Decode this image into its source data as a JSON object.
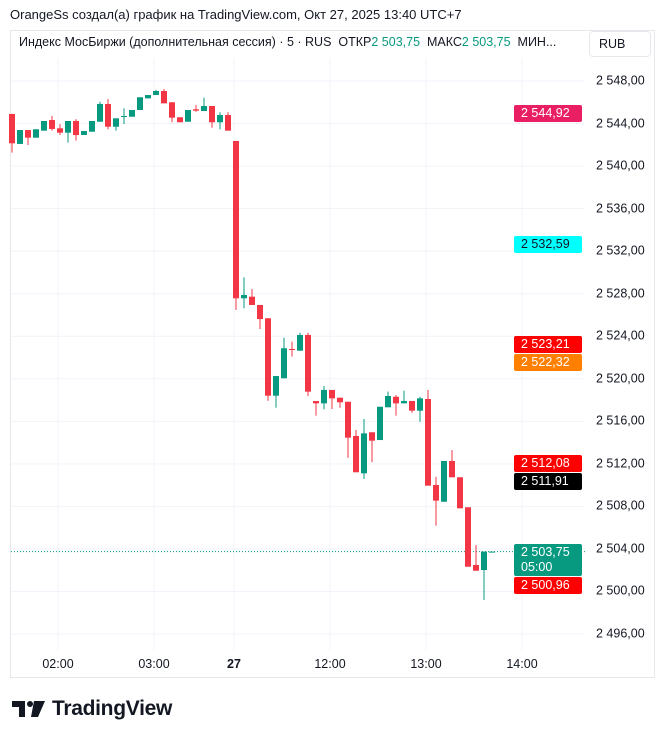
{
  "header": {
    "caption": "OrangeSs создал(а) график на TradingView.com, Окт 27, 2025 13:40 UTC+7"
  },
  "legend": {
    "symbol": "Индекс МосБиржи (дополнительная сессия) · 5 · RUS",
    "open_label": "ОТКР",
    "open_value": "2 503,75",
    "high_label": "МАКС",
    "high_value": "2 503,75",
    "low_label": "МИН..."
  },
  "currency_button": "RUB",
  "brand": "TradingView",
  "colors": {
    "up": "#089981",
    "down": "#f23645",
    "grid": "#f0f3fa"
  },
  "chart_data": {
    "type": "candlestick",
    "title": "Индекс МосБиржи (дополнительная сессия) · 5",
    "ylim": [
      2494,
      2550
    ],
    "y_ticks": [
      2548,
      2544,
      2540,
      2536,
      2532,
      2528,
      2524,
      2520,
      2516,
      2512,
      2508,
      2504,
      2500,
      2496
    ],
    "y_tick_labels": [
      "2 548,00",
      "2 544,00",
      "2 540,00",
      "2 536,00",
      "2 532,00",
      "2 528,00",
      "2 524,00",
      "2 520,00",
      "2 516,00",
      "2 512,00",
      "2 508,00",
      "2 504,00",
      "2 500,00",
      "2 496,00"
    ],
    "x_labels": [
      "02:00",
      "03:00",
      "27",
      "12:00",
      "13:00",
      "14:00"
    ],
    "x_label_candle_index": [
      6,
      18,
      28,
      40,
      52,
      64
    ],
    "candles": [
      [
        2544.9,
        2544.92,
        2541.26,
        2542.14
      ],
      [
        2542.08,
        2543.39,
        2542.08,
        2543.39
      ],
      [
        2543.39,
        2543.39,
        2541.98,
        2542.67
      ],
      [
        2542.67,
        2543.46,
        2542.67,
        2543.46
      ],
      [
        2543.33,
        2544.24,
        2543.33,
        2544.24
      ],
      [
        2544.33,
        2544.71,
        2543.33,
        2543.49
      ],
      [
        2543.55,
        2543.93,
        2542.92,
        2543.14
      ],
      [
        2543.14,
        2544.24,
        2542.2,
        2544.24
      ],
      [
        2544.24,
        2544.4,
        2542.39,
        2542.92
      ],
      [
        2542.92,
        2543.3,
        2542.92,
        2543.3
      ],
      [
        2543.23,
        2544.24,
        2543.23,
        2544.24
      ],
      [
        2544.17,
        2546.05,
        2544.17,
        2545.84
      ],
      [
        2545.84,
        2546.31,
        2543.46,
        2543.7
      ],
      [
        2543.7,
        2544.49,
        2543.33,
        2544.49
      ],
      [
        2544.64,
        2545.43,
        2543.96,
        2544.71
      ],
      [
        2544.64,
        2545.27,
        2544.64,
        2545.27
      ],
      [
        2545.27,
        2546.47,
        2545.27,
        2546.47
      ],
      [
        2546.37,
        2546.68,
        2546.37,
        2546.68
      ],
      [
        2546.68,
        2547.15,
        2546.68,
        2547.06
      ],
      [
        2547.06,
        2547.25,
        2545.9,
        2545.9
      ],
      [
        2546.0,
        2546.0,
        2544.12,
        2544.55
      ],
      [
        2544.59,
        2544.59,
        2544.12,
        2544.12
      ],
      [
        2544.17,
        2545.27,
        2544.17,
        2545.27
      ],
      [
        2545.34,
        2545.74,
        2545.11,
        2545.21
      ],
      [
        2545.18,
        2546.43,
        2545.18,
        2545.65
      ],
      [
        2545.65,
        2545.65,
        2543.61,
        2544.12
      ],
      [
        2544.12,
        2545.06,
        2543.46,
        2544.8
      ],
      [
        2544.8,
        2545.06,
        2543.33,
        2543.33
      ],
      [
        2542.36,
        2542.36,
        2526.47,
        2527.57
      ],
      [
        2527.57,
        2529.54,
        2526.63,
        2527.88
      ],
      [
        2527.72,
        2528.44,
        2526.94,
        2526.94
      ],
      [
        2526.94,
        2526.94,
        2524.68,
        2525.62
      ],
      [
        2525.69,
        2525.69,
        2517.94,
        2518.41
      ],
      [
        2518.41,
        2520.26,
        2517.28,
        2520.26
      ],
      [
        2520.05,
        2523.86,
        2520.05,
        2522.87
      ],
      [
        2522.8,
        2523.49,
        2522.08,
        2522.71
      ],
      [
        2522.64,
        2524.33,
        2522.64,
        2524.12
      ],
      [
        2524.12,
        2524.33,
        2518.38,
        2518.79
      ],
      [
        2517.91,
        2517.91,
        2516.53,
        2517.69
      ],
      [
        2517.69,
        2519.32,
        2517.13,
        2518.95
      ],
      [
        2518.95,
        2518.95,
        2517.16,
        2518.16
      ],
      [
        2518.22,
        2518.22,
        2517.28,
        2517.79
      ],
      [
        2517.84,
        2517.84,
        2512.58,
        2514.46
      ],
      [
        2514.62,
        2515.18,
        2511.21,
        2511.21
      ],
      [
        2511.11,
        2516.22,
        2510.58,
        2514.87
      ],
      [
        2514.97,
        2514.97,
        2512.15,
        2514.18
      ],
      [
        2514.24,
        2517.37,
        2514.24,
        2517.37
      ],
      [
        2517.32,
        2518.79,
        2517.32,
        2518.38
      ],
      [
        2518.31,
        2518.47,
        2516.53,
        2517.69
      ],
      [
        2517.69,
        2518.88,
        2517.69,
        2517.91
      ],
      [
        2517.91,
        2517.91,
        2516.81,
        2517.0
      ],
      [
        2517.0,
        2518.31,
        2515.96,
        2518.16
      ],
      [
        2518.1,
        2518.95,
        2509.95,
        2509.95
      ],
      [
        2510.01,
        2510.79,
        2506.18,
        2508.54
      ],
      [
        2508.44,
        2512.27,
        2508.44,
        2512.27
      ],
      [
        2512.27,
        2513.3,
        2510.74,
        2510.74
      ],
      [
        2510.74,
        2510.74,
        2507.82,
        2507.82
      ],
      [
        2507.92,
        2507.92,
        2502.33,
        2502.33
      ],
      [
        2502.49,
        2504.37,
        2501.95,
        2501.95
      ],
      [
        2502.02,
        2503.75,
        2499.2,
        2503.75
      ],
      [
        2503.75,
        2503.75,
        2503.75,
        2503.75
      ]
    ],
    "last_price": 2503.75,
    "price_tags": [
      {
        "value": 2544.92,
        "text": "2 544,92",
        "color": "#e91e63",
        "fg": "#ffffff"
      },
      {
        "value": 2532.59,
        "text": "2 532,59",
        "color": "#00ffff",
        "fg": "#131722"
      },
      {
        "value": 2523.21,
        "text": "2 523,21",
        "color": "#ff0000",
        "fg": "#ffffff"
      },
      {
        "value": 2522.32,
        "text": "2 522,32",
        "color": "#ff8000",
        "fg": "#ffffff"
      },
      {
        "value": 2512.08,
        "text": "2 512,08",
        "color": "#ff0000",
        "fg": "#ffffff"
      },
      {
        "value": 2511.91,
        "text": "2 511,91",
        "color": "#000000",
        "fg": "#ffffff"
      },
      {
        "value": 2500.96,
        "text": "2 500,96",
        "color": "#ff0000",
        "fg": "#ffffff"
      }
    ],
    "last_tag": {
      "text": "2 503,75",
      "countdown": "05:00",
      "color": "#089981"
    }
  }
}
